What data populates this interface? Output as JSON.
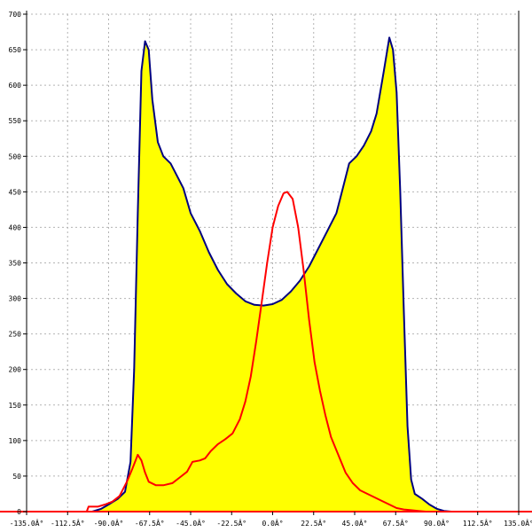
{
  "chart_data": {
    "type": "area",
    "title": "",
    "xlabel": "",
    "ylabel": "",
    "xlim": [
      -135,
      135
    ],
    "ylim": [
      0,
      700
    ],
    "grid": true,
    "x_ticks": [
      -135,
      -112.5,
      -90,
      -67.5,
      -45,
      -22.5,
      0,
      22.5,
      45,
      67.5,
      90,
      112.5,
      135
    ],
    "x_tick_labels": [
      "-135.0Â°",
      "-112.5Â°",
      "-90.0Â°",
      "-67.5Â°",
      "-45.0Â°",
      "-22.5Â°",
      "0.0Â°",
      "22.5Â°",
      "45.0Â°",
      "67.5Â°",
      "90.0Â°",
      "112.5Â°",
      "135.0Â°"
    ],
    "y_ticks": [
      0,
      50,
      100,
      150,
      200,
      250,
      300,
      350,
      400,
      450,
      500,
      550,
      600,
      650,
      700
    ],
    "y_tick_labels": [
      "0",
      "50",
      "100",
      "150",
      "200",
      "250",
      "300",
      "350",
      "400",
      "450",
      "500",
      "550",
      "600",
      "650",
      "700"
    ],
    "series": [
      {
        "color": "#000080",
        "fill": "#ffff00",
        "points": [
          [
            -99,
            0
          ],
          [
            -94,
            4
          ],
          [
            -90,
            10
          ],
          [
            -85,
            18
          ],
          [
            -81,
            28
          ],
          [
            -78,
            70
          ],
          [
            -76,
            200
          ],
          [
            -74,
            420
          ],
          [
            -72,
            620
          ],
          [
            -70,
            662
          ],
          [
            -68,
            650
          ],
          [
            -66,
            580
          ],
          [
            -63,
            520
          ],
          [
            -60,
            500
          ],
          [
            -56,
            490
          ],
          [
            -53,
            475
          ],
          [
            -49,
            455
          ],
          [
            -45,
            420
          ],
          [
            -40,
            395
          ],
          [
            -35,
            365
          ],
          [
            -30,
            340
          ],
          [
            -25,
            320
          ],
          [
            -20,
            307
          ],
          [
            -15,
            296
          ],
          [
            -10,
            291
          ],
          [
            -5,
            290
          ],
          [
            0,
            292
          ],
          [
            5,
            298
          ],
          [
            10,
            310
          ],
          [
            15,
            325
          ],
          [
            20,
            345
          ],
          [
            25,
            370
          ],
          [
            30,
            395
          ],
          [
            35,
            420
          ],
          [
            39,
            460
          ],
          [
            42,
            490
          ],
          [
            46,
            500
          ],
          [
            50,
            515
          ],
          [
            54,
            535
          ],
          [
            57,
            560
          ],
          [
            61,
            620
          ],
          [
            64,
            667
          ],
          [
            66,
            650
          ],
          [
            68,
            590
          ],
          [
            70,
            450
          ],
          [
            72,
            280
          ],
          [
            74,
            120
          ],
          [
            76,
            45
          ],
          [
            78,
            25
          ],
          [
            82,
            18
          ],
          [
            86,
            10
          ],
          [
            90,
            4
          ],
          [
            94,
            1
          ],
          [
            98,
            0
          ]
        ]
      },
      {
        "color": "#ff0000",
        "points": [
          [
            -102,
            0
          ],
          [
            -101,
            7
          ],
          [
            -96,
            7
          ],
          [
            -92,
            10
          ],
          [
            -88,
            14
          ],
          [
            -84,
            22
          ],
          [
            -80,
            42
          ],
          [
            -77,
            60
          ],
          [
            -74,
            80
          ],
          [
            -72,
            72
          ],
          [
            -70,
            55
          ],
          [
            -68,
            42
          ],
          [
            -64,
            37
          ],
          [
            -60,
            37
          ],
          [
            -55,
            40
          ],
          [
            -51,
            48
          ],
          [
            -47,
            56
          ],
          [
            -44,
            70
          ],
          [
            -40,
            72
          ],
          [
            -37,
            75
          ],
          [
            -34,
            85
          ],
          [
            -30,
            95
          ],
          [
            -26,
            102
          ],
          [
            -22,
            110
          ],
          [
            -18,
            130
          ],
          [
            -15,
            155
          ],
          [
            -12,
            190
          ],
          [
            -9,
            240
          ],
          [
            -6,
            295
          ],
          [
            -3,
            350
          ],
          [
            0,
            400
          ],
          [
            3,
            430
          ],
          [
            6,
            448
          ],
          [
            8,
            450
          ],
          [
            11,
            440
          ],
          [
            14,
            400
          ],
          [
            17,
            340
          ],
          [
            20,
            270
          ],
          [
            23,
            210
          ],
          [
            26,
            170
          ],
          [
            29,
            135
          ],
          [
            32,
            105
          ],
          [
            36,
            80
          ],
          [
            40,
            55
          ],
          [
            44,
            40
          ],
          [
            48,
            30
          ],
          [
            52,
            25
          ],
          [
            56,
            20
          ],
          [
            60,
            15
          ],
          [
            64,
            10
          ],
          [
            68,
            5
          ],
          [
            72,
            3
          ],
          [
            76,
            2
          ],
          [
            80,
            1
          ],
          [
            84,
            0
          ]
        ]
      }
    ]
  }
}
